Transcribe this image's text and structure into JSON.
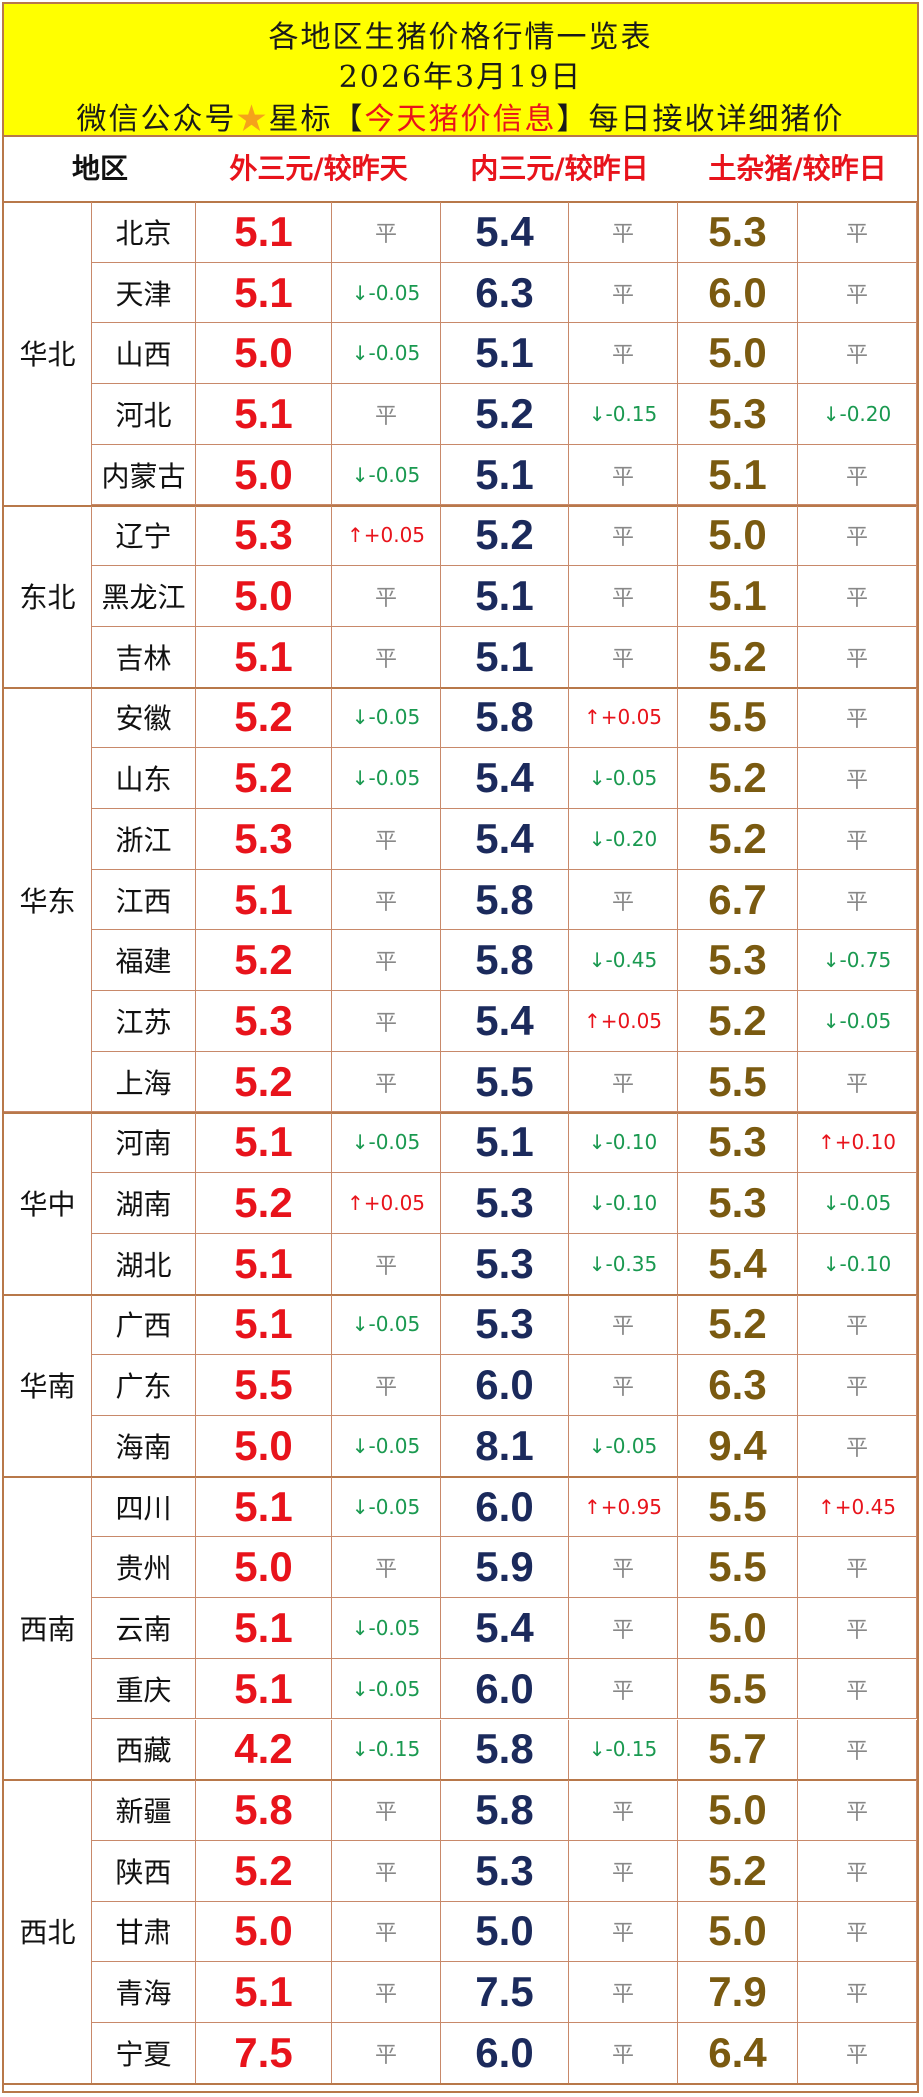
{
  "header": {
    "title": "各地区生猪价格行情一览表",
    "date": "2026年3月19日",
    "subscribe_prefix": "微信公众号",
    "star_icon": "★",
    "subscribe_mid": "星标【",
    "account_name": "今天猪价信息",
    "subscribe_suffix": "】每日接收详细猪价"
  },
  "columns": {
    "region": "地区",
    "c1": "外三元/较昨天",
    "c2": "内三元/较昨日",
    "c3": "土杂猪/较昨日"
  },
  "colors": {
    "red": "#e8131b",
    "navy": "#1b2a5c",
    "brown": "#7a5a10",
    "green": "#1a9950",
    "header_bg": "#ffff00"
  },
  "regions": [
    {
      "name": "华北",
      "rows": [
        {
          "p": "北京",
          "a": "5.1",
          "ac": "平",
          "b": "5.4",
          "bc": "平",
          "c": "5.3",
          "cc": "平"
        },
        {
          "p": "天津",
          "a": "5.1",
          "ac": "↓-0.05",
          "b": "6.3",
          "bc": "平",
          "c": "6.0",
          "cc": "平"
        },
        {
          "p": "山西",
          "a": "5.0",
          "ac": "↓-0.05",
          "b": "5.1",
          "bc": "平",
          "c": "5.0",
          "cc": "平"
        },
        {
          "p": "河北",
          "a": "5.1",
          "ac": "平",
          "b": "5.2",
          "bc": "↓-0.15",
          "c": "5.3",
          "cc": "↓-0.20"
        },
        {
          "p": "内蒙古",
          "a": "5.0",
          "ac": "↓-0.05",
          "b": "5.1",
          "bc": "平",
          "c": "5.1",
          "cc": "平"
        }
      ]
    },
    {
      "name": "东北",
      "rows": [
        {
          "p": "辽宁",
          "a": "5.3",
          "ac": "↑+0.05",
          "b": "5.2",
          "bc": "平",
          "c": "5.0",
          "cc": "平"
        },
        {
          "p": "黑龙江",
          "a": "5.0",
          "ac": "平",
          "b": "5.1",
          "bc": "平",
          "c": "5.1",
          "cc": "平"
        },
        {
          "p": "吉林",
          "a": "5.1",
          "ac": "平",
          "b": "5.1",
          "bc": "平",
          "c": "5.2",
          "cc": "平"
        }
      ]
    },
    {
      "name": "华东",
      "rows": [
        {
          "p": "安徽",
          "a": "5.2",
          "ac": "↓-0.05",
          "b": "5.8",
          "bc": "↑+0.05",
          "c": "5.5",
          "cc": "平"
        },
        {
          "p": "山东",
          "a": "5.2",
          "ac": "↓-0.05",
          "b": "5.4",
          "bc": "↓-0.05",
          "c": "5.2",
          "cc": "平"
        },
        {
          "p": "浙江",
          "a": "5.3",
          "ac": "平",
          "b": "5.4",
          "bc": "↓-0.20",
          "c": "5.2",
          "cc": "平"
        },
        {
          "p": "江西",
          "a": "5.1",
          "ac": "平",
          "b": "5.8",
          "bc": "平",
          "c": "6.7",
          "cc": "平"
        },
        {
          "p": "福建",
          "a": "5.2",
          "ac": "平",
          "b": "5.8",
          "bc": "↓-0.45",
          "c": "5.3",
          "cc": "↓-0.75"
        },
        {
          "p": "江苏",
          "a": "5.3",
          "ac": "平",
          "b": "5.4",
          "bc": "↑+0.05",
          "c": "5.2",
          "cc": "↓-0.05"
        },
        {
          "p": "上海",
          "a": "5.2",
          "ac": "平",
          "b": "5.5",
          "bc": "平",
          "c": "5.5",
          "cc": "平"
        }
      ]
    },
    {
      "name": "华中",
      "rows": [
        {
          "p": "河南",
          "a": "5.1",
          "ac": "↓-0.05",
          "b": "5.1",
          "bc": "↓-0.10",
          "c": "5.3",
          "cc": "↑+0.10"
        },
        {
          "p": "湖南",
          "a": "5.2",
          "ac": "↑+0.05",
          "b": "5.3",
          "bc": "↓-0.10",
          "c": "5.3",
          "cc": "↓-0.05"
        },
        {
          "p": "湖北",
          "a": "5.1",
          "ac": "平",
          "b": "5.3",
          "bc": "↓-0.35",
          "c": "5.4",
          "cc": "↓-0.10"
        }
      ]
    },
    {
      "name": "华南",
      "rows": [
        {
          "p": "广西",
          "a": "5.1",
          "ac": "↓-0.05",
          "b": "5.3",
          "bc": "平",
          "c": "5.2",
          "cc": "平"
        },
        {
          "p": "广东",
          "a": "5.5",
          "ac": "平",
          "b": "6.0",
          "bc": "平",
          "c": "6.3",
          "cc": "平"
        },
        {
          "p": "海南",
          "a": "5.0",
          "ac": "↓-0.05",
          "b": "8.1",
          "bc": "↓-0.05",
          "c": "9.4",
          "cc": "平"
        }
      ]
    },
    {
      "name": "西南",
      "rows": [
        {
          "p": "四川",
          "a": "5.1",
          "ac": "↓-0.05",
          "b": "6.0",
          "bc": "↑+0.95",
          "c": "5.5",
          "cc": "↑+0.45"
        },
        {
          "p": "贵州",
          "a": "5.0",
          "ac": "平",
          "b": "5.9",
          "bc": "平",
          "c": "5.5",
          "cc": "平"
        },
        {
          "p": "云南",
          "a": "5.1",
          "ac": "↓-0.05",
          "b": "5.4",
          "bc": "平",
          "c": "5.0",
          "cc": "平"
        },
        {
          "p": "重庆",
          "a": "5.1",
          "ac": "↓-0.05",
          "b": "6.0",
          "bc": "平",
          "c": "5.5",
          "cc": "平"
        },
        {
          "p": "西藏",
          "a": "4.2",
          "ac": "↓-0.15",
          "b": "5.8",
          "bc": "↓-0.15",
          "c": "5.7",
          "cc": "平"
        }
      ]
    },
    {
      "name": "西北",
      "rows": [
        {
          "p": "新疆",
          "a": "5.8",
          "ac": "平",
          "b": "5.8",
          "bc": "平",
          "c": "5.0",
          "cc": "平"
        },
        {
          "p": "陕西",
          "a": "5.2",
          "ac": "平",
          "b": "5.3",
          "bc": "平",
          "c": "5.2",
          "cc": "平"
        },
        {
          "p": "甘肃",
          "a": "5.0",
          "ac": "平",
          "b": "5.0",
          "bc": "平",
          "c": "5.0",
          "cc": "平"
        },
        {
          "p": "青海",
          "a": "5.1",
          "ac": "平",
          "b": "7.5",
          "bc": "平",
          "c": "7.9",
          "cc": "平"
        },
        {
          "p": "宁夏",
          "a": "7.5",
          "ac": "平",
          "b": "6.0",
          "bc": "平",
          "c": "6.4",
          "cc": "平"
        }
      ]
    }
  ]
}
